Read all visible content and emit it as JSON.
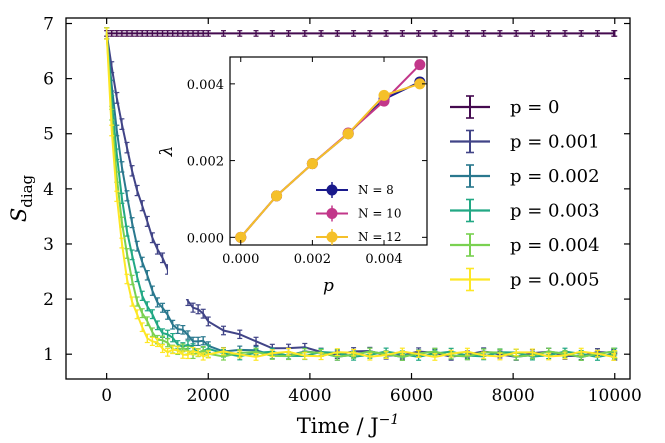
{
  "chart_data": [
    {
      "type": "line",
      "xlabel": "Time / J",
      "xlabel_sup": "−1",
      "ylabel": "S",
      "ylabel_sub": "diag",
      "xlim": [
        -800,
        10300
      ],
      "ylim": [
        0.55,
        7.1
      ],
      "xticks": [
        0,
        2000,
        4000,
        6000,
        8000,
        10000
      ],
      "yticks": [
        1,
        2,
        3,
        4,
        5,
        6,
        7
      ],
      "legend_position": "center-right",
      "error_bars": true,
      "series": [
        {
          "name": "p = 0",
          "color": "#440a4f",
          "tau": 0
        },
        {
          "name": "p = 0.001",
          "color": "#414487",
          "tau": 900
        },
        {
          "name": "p = 0.002",
          "color": "#2a788e",
          "tau": 560
        },
        {
          "name": "p = 0.003",
          "color": "#22a884",
          "tau": 420
        },
        {
          "name": "p = 0.004",
          "color": "#7ad151",
          "tau": 340
        },
        {
          "name": "p = 0.005",
          "color": "#fde725",
          "tau": 280
        }
      ],
      "start_value": 6.82,
      "plateau_value": 1.0,
      "x_max": 10000
    },
    {
      "type": "line",
      "xlabel": "p",
      "ylabel": "λ",
      "x": [
        0,
        0.001,
        0.002,
        0.003,
        0.004,
        0.005
      ],
      "xlim": [
        -0.0003,
        0.0052
      ],
      "ylim": [
        -0.0002,
        0.0047
      ],
      "xticks": [
        0.0,
        0.002,
        0.004
      ],
      "xtick_labels": [
        "0.000",
        "0.002",
        "0.004"
      ],
      "yticks": [
        0.0,
        0.002,
        0.004
      ],
      "ytick_labels": [
        "0.000",
        "0.002",
        "0.004"
      ],
      "legend_position": "bottom-right",
      "series": [
        {
          "name": "N = 8",
          "color": "#1a1a8c",
          "values": [
            0.0,
            0.00108,
            0.00192,
            0.0027,
            0.0036,
            0.00405
          ]
        },
        {
          "name": "N = 10",
          "color": "#c2378a",
          "values": [
            0.0,
            0.00108,
            0.00192,
            0.00272,
            0.00355,
            0.0045
          ]
        },
        {
          "name": "N = 12",
          "color": "#f5c02a",
          "values": [
            0.0,
            0.00108,
            0.00192,
            0.0027,
            0.0037,
            0.004
          ]
        }
      ]
    }
  ]
}
